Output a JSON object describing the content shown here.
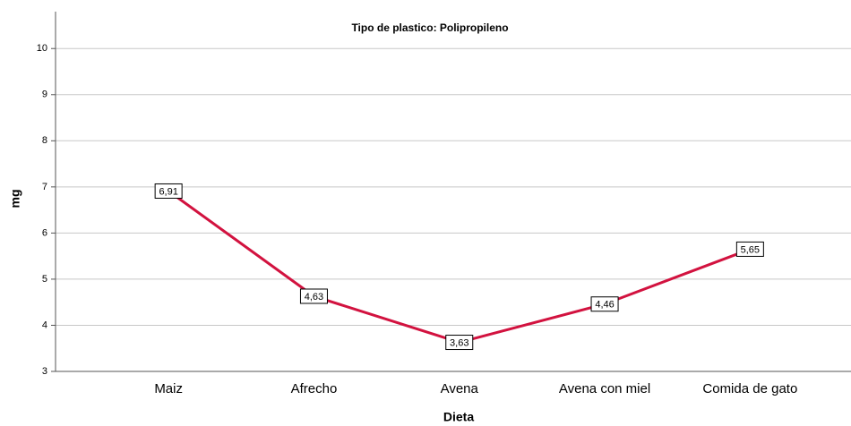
{
  "chart_data": {
    "type": "line",
    "title": "Tipo de plastico: Polipropileno",
    "x_label": "Dieta",
    "y_label": "mg",
    "categories": [
      "Maiz",
      "Afrecho",
      "Avena",
      "Avena con miel",
      "Comida de gato"
    ],
    "values": [
      6.91,
      4.63,
      3.63,
      4.46,
      5.65
    ],
    "value_labels": [
      "6,91",
      "4,63",
      "3,63",
      "4,46",
      "5,65"
    ],
    "color": "#d2123f",
    "ylim": [
      3,
      10.8
    ],
    "yticks": [
      3,
      4,
      5,
      6,
      7,
      8,
      9,
      10
    ],
    "grid": true
  }
}
